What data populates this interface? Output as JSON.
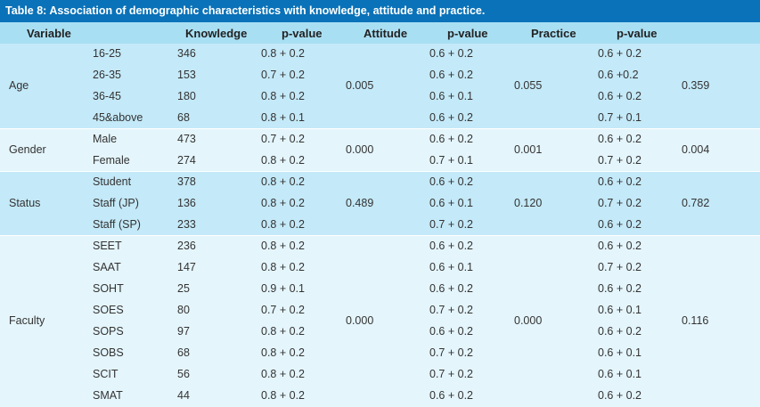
{
  "title": "Table 8: Association of demographic characteristics with knowledge, attitude and practice.",
  "headers": {
    "variable": "Variable",
    "knowledge": "Knowledge",
    "pvalue1": "p-value",
    "attitude": "Attitude",
    "pvalue2": "p-value",
    "practice": "Practice",
    "pvalue3": "p-value"
  },
  "colors": {
    "title_bg": "#0a72b8",
    "header_bg": "#a9dff3",
    "dark_band": "#c4e9f8",
    "light_band": "#e4f5fc"
  },
  "groups": [
    {
      "variable": "Age",
      "attitude_p": "0.005",
      "practice_p": "0.055",
      "final_p": "0.359",
      "rows": [
        {
          "cat": "16-25",
          "k": "346",
          "kp": "0.8 + 0.2",
          "a": "0.6 + 0.2",
          "p": "0.6 + 0.2"
        },
        {
          "cat": "26-35",
          "k": "153",
          "kp": "0.7 + 0.2",
          "a": "0.6 + 0.2",
          "p": "0.6 +0.2"
        },
        {
          "cat": "36-45",
          "k": "180",
          "kp": "0.8 + 0.2",
          "a": "0.6 + 0.1",
          "p": "0.6 + 0.2"
        },
        {
          "cat": "45&above",
          "k": "68",
          "kp": "0.8 + 0.1",
          "a": "0.6 + 0.2",
          "p": "0.7 + 0.1"
        }
      ]
    },
    {
      "variable": "Gender",
      "attitude_p": "0.000",
      "practice_p": "0.001",
      "final_p": "0.004",
      "rows": [
        {
          "cat": "Male",
          "k": "473",
          "kp": "0.7 + 0.2",
          "a": "0.6 + 0.2",
          "p": "0.6 + 0.2"
        },
        {
          "cat": "Female",
          "k": "274",
          "kp": "0.8 + 0.2",
          "a": "0.7 + 0.1",
          "p": "0.7 + 0.2"
        }
      ]
    },
    {
      "variable": "Status",
      "attitude_p": "0.489",
      "practice_p": "0.120",
      "final_p": "0.782",
      "rows": [
        {
          "cat": "Student",
          "k": "378",
          "kp": "0.8 + 0.2",
          "a": "0.6 + 0.2",
          "p": "0.6 + 0.2"
        },
        {
          "cat": "Staff (JP)",
          "k": "136",
          "kp": "0.8 + 0.2",
          "a": "0.6 + 0.1",
          "p": "0.7 + 0.2"
        },
        {
          "cat": "Staff (SP)",
          "k": "233",
          "kp": "0.8 + 0.2",
          "a": "0.7 + 0.2",
          "p": "0.6 + 0.2"
        }
      ]
    },
    {
      "variable": "Faculty",
      "attitude_p": "0.000",
      "practice_p": "0.000",
      "final_p": "0.116",
      "rows": [
        {
          "cat": "SEET",
          "k": "236",
          "kp": "0.8 + 0.2",
          "a": "0.6 + 0.2",
          "p": "0.6 + 0.2"
        },
        {
          "cat": "SAAT",
          "k": "147",
          "kp": "0.8 + 0.2",
          "a": "0.6 + 0.1",
          "p": "0.7 + 0.2"
        },
        {
          "cat": "SOHT",
          "k": "25",
          "kp": "0.9 + 0.1",
          "a": "0.6 + 0.2",
          "p": "0.6 + 0.2"
        },
        {
          "cat": "SOES",
          "k": "80",
          "kp": "0.7 + 0.2",
          "a": "0.7 + 0.2",
          "p": "0.6 + 0.1"
        },
        {
          "cat": "SOPS",
          "k": "97",
          "kp": "0.8 + 0.2",
          "a": "0.6 + 0.2",
          "p": "0.6 + 0.2"
        },
        {
          "cat": "SOBS",
          "k": "68",
          "kp": "0.8 + 0.2",
          "a": "0.7 + 0.2",
          "p": "0.6 + 0.1"
        },
        {
          "cat": "SCIT",
          "k": "56",
          "kp": "0.8 + 0.2",
          "a": "0.7 + 0.2",
          "p": "0.6 + 0.1"
        },
        {
          "cat": "SMAT",
          "k": "44",
          "kp": "0.8 + 0.2",
          "a": "0.6 + 0.2",
          "p": "0.6 + 0.2"
        }
      ]
    }
  ]
}
